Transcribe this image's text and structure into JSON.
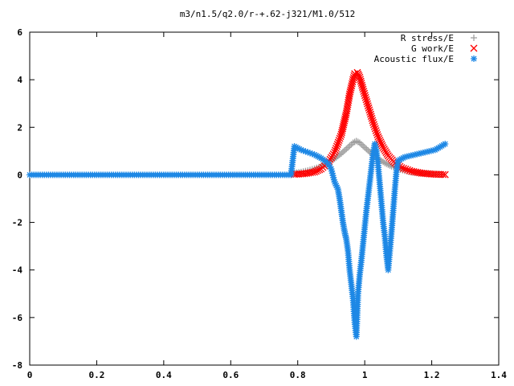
{
  "chart_data": {
    "type": "scatter",
    "title": "m3/n1.5/q2.0/r-+.62-j321/M1.0/512",
    "xlabel": "",
    "ylabel": "",
    "xlim": [
      0,
      1.4
    ],
    "ylim": [
      -8,
      6
    ],
    "x_ticks": [
      "0",
      "0.2",
      "0.4",
      "0.6",
      "0.8",
      "1",
      "1.2",
      "1.4"
    ],
    "y_ticks": [
      "6",
      "4",
      "2",
      "0",
      "-2",
      "-4",
      "-6",
      "-8"
    ],
    "grid": false,
    "legend_position": "top-right",
    "series": [
      {
        "name": "R stress/E",
        "marker": "plus",
        "color": "#a0a0a0",
        "points": [
          [
            0.79,
            0.08
          ],
          [
            0.81,
            0.12
          ],
          [
            0.83,
            0.18
          ],
          [
            0.85,
            0.26
          ],
          [
            0.87,
            0.36
          ],
          [
            0.89,
            0.5
          ],
          [
            0.91,
            0.68
          ],
          [
            0.93,
            0.9
          ],
          [
            0.95,
            1.15
          ],
          [
            0.965,
            1.35
          ],
          [
            0.975,
            1.42
          ],
          [
            0.985,
            1.35
          ],
          [
            1.0,
            1.15
          ],
          [
            1.02,
            0.9
          ],
          [
            1.04,
            0.68
          ],
          [
            1.06,
            0.5
          ],
          [
            1.08,
            0.36
          ],
          [
            1.1,
            0.25
          ],
          [
            1.12,
            0.17
          ],
          [
            1.14,
            0.11
          ],
          [
            1.17,
            0.07
          ],
          [
            1.2,
            0.04
          ],
          [
            1.23,
            0.02
          ]
        ]
      },
      {
        "name": "G work/E",
        "marker": "x",
        "color": "#ff0000",
        "points": [
          [
            0.79,
            0.02
          ],
          [
            0.82,
            0.05
          ],
          [
            0.85,
            0.12
          ],
          [
            0.87,
            0.25
          ],
          [
            0.89,
            0.5
          ],
          [
            0.91,
            0.95
          ],
          [
            0.93,
            1.7
          ],
          [
            0.945,
            2.6
          ],
          [
            0.955,
            3.4
          ],
          [
            0.965,
            4.0
          ],
          [
            0.97,
            4.25
          ],
          [
            0.978,
            4.3
          ],
          [
            0.985,
            4.1
          ],
          [
            0.995,
            3.6
          ],
          [
            1.01,
            2.9
          ],
          [
            1.025,
            2.2
          ],
          [
            1.04,
            1.6
          ],
          [
            1.055,
            1.15
          ],
          [
            1.07,
            0.8
          ],
          [
            1.09,
            0.5
          ],
          [
            1.11,
            0.3
          ],
          [
            1.14,
            0.15
          ],
          [
            1.17,
            0.07
          ],
          [
            1.2,
            0.03
          ],
          [
            1.24,
            0.01
          ]
        ]
      },
      {
        "name": "Acoustic flux/E",
        "marker": "star",
        "color": "#1e88e5",
        "points": [
          [
            0.0,
            0.0
          ],
          [
            0.6,
            0.0
          ],
          [
            0.78,
            0.0
          ],
          [
            0.79,
            1.2
          ],
          [
            0.81,
            1.05
          ],
          [
            0.83,
            0.95
          ],
          [
            0.85,
            0.85
          ],
          [
            0.87,
            0.7
          ],
          [
            0.89,
            0.5
          ],
          [
            0.9,
            0.25
          ],
          [
            0.91,
            -0.3
          ],
          [
            0.92,
            -0.6
          ],
          [
            0.925,
            -1.0
          ],
          [
            0.93,
            -1.5
          ],
          [
            0.935,
            -2.0
          ],
          [
            0.94,
            -2.4
          ],
          [
            0.945,
            -2.7
          ],
          [
            0.95,
            -3.2
          ],
          [
            0.955,
            -4.0
          ],
          [
            0.96,
            -4.6
          ],
          [
            0.965,
            -5.2
          ],
          [
            0.97,
            -6.2
          ],
          [
            0.975,
            -6.8
          ],
          [
            0.98,
            -5.0
          ],
          [
            0.985,
            -4.2
          ],
          [
            0.99,
            -3.6
          ],
          [
            0.995,
            -2.9
          ],
          [
            1.0,
            -2.2
          ],
          [
            1.005,
            -1.5
          ],
          [
            1.01,
            -0.9
          ],
          [
            1.015,
            -0.3
          ],
          [
            1.02,
            0.3
          ],
          [
            1.025,
            0.9
          ],
          [
            1.03,
            1.3
          ],
          [
            1.035,
            1.0
          ],
          [
            1.04,
            0.4
          ],
          [
            1.045,
            -0.4
          ],
          [
            1.05,
            -1.2
          ],
          [
            1.055,
            -2.0
          ],
          [
            1.06,
            -2.6
          ],
          [
            1.065,
            -3.4
          ],
          [
            1.07,
            -4.0
          ],
          [
            1.075,
            -3.2
          ],
          [
            1.08,
            -2.4
          ],
          [
            1.085,
            -1.5
          ],
          [
            1.09,
            -0.6
          ],
          [
            1.095,
            0.2
          ],
          [
            1.1,
            0.6
          ],
          [
            1.12,
            0.75
          ],
          [
            1.15,
            0.85
          ],
          [
            1.18,
            0.95
          ],
          [
            1.21,
            1.05
          ],
          [
            1.24,
            1.3
          ]
        ]
      }
    ]
  }
}
